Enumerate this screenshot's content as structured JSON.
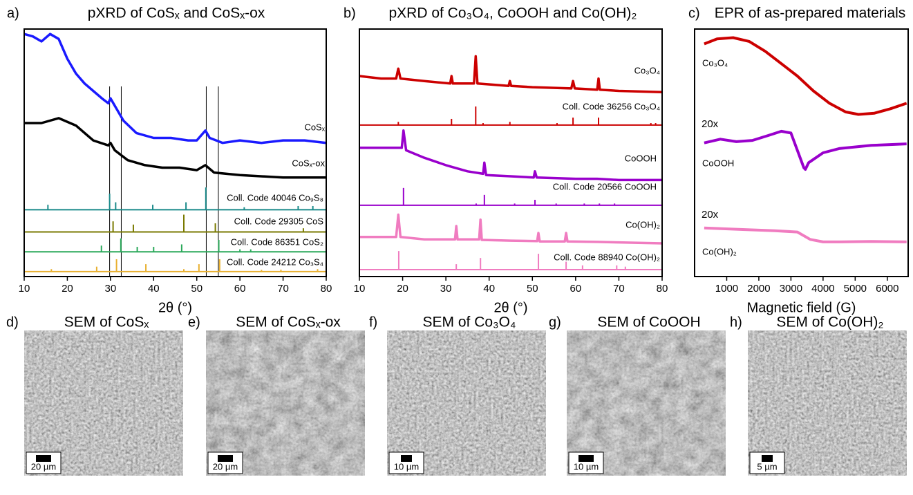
{
  "chart_data": [
    {
      "type": "line",
      "label": "a)",
      "title": "pXRD of CoSₓ and CoSₓ-ox",
      "xlabel": "2θ (°)",
      "xlim": [
        10,
        80
      ],
      "xticks": [
        10,
        20,
        30,
        40,
        50,
        60,
        70,
        80
      ],
      "ylim": [
        0,
        100
      ],
      "vlines": [
        29.8,
        32.5,
        52.2,
        55
      ],
      "series": [
        {
          "name": "CoSₓ",
          "color": "#1a1aff",
          "x": [
            10,
            12,
            14,
            16,
            18,
            20,
            22,
            24,
            26,
            28,
            29.5,
            30,
            31,
            33,
            36,
            40,
            44,
            48,
            50,
            52,
            53,
            56,
            60,
            65,
            70,
            75,
            80
          ],
          "values": [
            98,
            97,
            95,
            98,
            96,
            88,
            82,
            78,
            75,
            72,
            70,
            72,
            69,
            63,
            58,
            56,
            56,
            55,
            55,
            59,
            56,
            54,
            55,
            54,
            55,
            55,
            54
          ]
        },
        {
          "name": "CoSₓ-ox",
          "color": "#000000",
          "x": [
            10,
            14,
            18,
            22,
            26,
            29.5,
            30,
            31,
            34,
            38,
            42,
            46,
            50,
            52,
            54,
            60,
            70,
            80
          ],
          "values": [
            62,
            62,
            64,
            61,
            55,
            53,
            54,
            51,
            47,
            45,
            44,
            44,
            43,
            45,
            42,
            41,
            40,
            40
          ]
        }
      ],
      "references": [
        {
          "name": "Coll. Code 40046 Co₉S₈",
          "color": "#1a8a8a",
          "baseline": 27,
          "x": [
            15.5,
            29.8,
            31.2,
            39.8,
            47.5,
            52.1,
            61,
            73.5,
            76.9
          ],
          "values": [
            29,
            33.5,
            30,
            29,
            30,
            36,
            28,
            28.5,
            28.5
          ]
        },
        {
          "name": "Coll. Code 29305 CoS",
          "color": "#7a7a00",
          "baseline": 18,
          "x": [
            30.6,
            35.3,
            47,
            54.3,
            74.7
          ],
          "values": [
            22.3,
            21,
            25,
            21.5,
            19.5
          ]
        },
        {
          "name": "Coll. Code 86351 CoS₂",
          "color": "#2aa85a",
          "baseline": 10,
          "x": [
            27.9,
            32.4,
            36.2,
            40,
            46.5,
            55.1,
            60,
            62.5
          ],
          "values": [
            12.5,
            15.4,
            12,
            12,
            13,
            14.8,
            11,
            11
          ]
        },
        {
          "name": "Coll. Code 24212 Co₃S₄",
          "color": "#e8b030",
          "baseline": 2,
          "x": [
            16.3,
            26.8,
            31.4,
            38.2,
            47,
            50.5,
            55.3,
            65,
            69.5,
            78
          ],
          "values": [
            3,
            4,
            7,
            5,
            3,
            5,
            7,
            2.7,
            2.8,
            3
          ]
        }
      ]
    },
    {
      "type": "line",
      "label": "b)",
      "title": "pXRD of Co₃O₄, CoOOH and Co(OH)₂",
      "xlabel": "2θ (°)",
      "xlim": [
        10,
        80
      ],
      "xticks": [
        10,
        20,
        30,
        40,
        50,
        60,
        70,
        80
      ],
      "ylim": [
        0,
        100
      ],
      "series": [
        {
          "name": "Co₃O₄",
          "color": "#cc0000",
          "x": [
            10,
            15,
            18.5,
            19,
            19.5,
            25,
            31,
            31.3,
            31.6,
            36.5,
            36.9,
            37.3,
            44.5,
            44.8,
            45.1,
            50,
            59,
            59.4,
            59.8,
            65,
            65.3,
            65.6,
            70,
            80
          ],
          "values": [
            81,
            80,
            80,
            84,
            80,
            79,
            78,
            81,
            78,
            78,
            89,
            78,
            77,
            79,
            77,
            76.5,
            76,
            79,
            76,
            75.5,
            80,
            75.5,
            75,
            74.5
          ]
        },
        {
          "name": "CoOOH",
          "color": "#9900cc",
          "x": [
            10,
            15,
            19.8,
            20.2,
            20.8,
            25,
            30,
            35,
            38.6,
            38.9,
            39.3,
            45,
            50.3,
            50.6,
            51,
            60,
            65,
            70,
            80
          ],
          "values": [
            52,
            52,
            52,
            59,
            51,
            48,
            45,
            42.5,
            41.5,
            46,
            41,
            40.5,
            40,
            42.5,
            40,
            39.5,
            39.5,
            39,
            39
          ]
        },
        {
          "name": "Co(OH)₂",
          "color": "#f07cc0",
          "x": [
            10,
            18.5,
            19,
            19.5,
            25,
            32.1,
            32.4,
            32.7,
            37.7,
            38,
            38.3,
            45,
            51.1,
            51.4,
            51.7,
            57.5,
            57.8,
            58.1,
            65,
            70,
            80
          ],
          "values": [
            16,
            16,
            25,
            16,
            15,
            15,
            20.4,
            15,
            15,
            23,
            14.8,
            14.5,
            14.3,
            17.6,
            14.2,
            14.2,
            17.6,
            14.2,
            14,
            13.8,
            13.4
          ]
        }
      ],
      "references": [
        {
          "name": "Coll. Code 36256 Co₃O₄",
          "color": "#cc0000",
          "baseline": 61.2,
          "x": [
            19,
            31.3,
            36.9,
            38.6,
            44.8,
            55.7,
            59.4,
            65.3,
            77.4,
            78.5
          ],
          "values": [
            62.5,
            63.7,
            68.7,
            62,
            62.5,
            62,
            64.2,
            64.2,
            62,
            62
          ]
        },
        {
          "name": "Coll. Code 20566 CoOOH",
          "color": "#9900cc",
          "baseline": 28.8,
          "x": [
            20.2,
            37,
            38.9,
            45.9,
            50.6,
            55.5,
            62,
            65.5,
            69
          ],
          "values": [
            35.8,
            29.5,
            33,
            29.5,
            31,
            29.5,
            29.5,
            29.5,
            29.5
          ]
        },
        {
          "name": "Coll. Code 88940 Co(OH)₂",
          "color": "#f07cc0",
          "baseline": 2.8,
          "x": [
            19.1,
            32.4,
            38,
            51.4,
            57.8,
            61.6,
            69.5,
            71.5
          ],
          "values": [
            10.3,
            5,
            7.5,
            9.2,
            6,
            4.5,
            4.5,
            4
          ]
        }
      ]
    },
    {
      "type": "line",
      "label": "c)",
      "title": "EPR of as-prepared materials",
      "xlabel": "Magnetic field (G)",
      "xlim": [
        0,
        6650
      ],
      "xticks": [
        1000,
        2000,
        3000,
        4000,
        5000,
        6000
      ],
      "ylim": [
        0,
        100
      ],
      "annotations": [
        "20x",
        "20x"
      ],
      "series": [
        {
          "name": "Co₃O₄",
          "color": "#cc0000",
          "x": [
            300,
            700,
            1200,
            1700,
            2200,
            2700,
            3200,
            3700,
            4200,
            4700,
            5100,
            5600,
            6100,
            6600
          ],
          "values": [
            94,
            96,
            96.5,
            95,
            91,
            86,
            81,
            75,
            70,
            66.5,
            65.5,
            66,
            67.8,
            70
          ]
        },
        {
          "name": "CoOOH",
          "color": "#9900cc",
          "x": [
            300,
            800,
            1300,
            1800,
            2300,
            2700,
            3000,
            3200,
            3400,
            3450,
            3550,
            4000,
            4500,
            5500,
            6600
          ],
          "values": [
            54,
            55.5,
            54.5,
            55,
            57,
            58.7,
            58,
            51,
            44,
            43.3,
            46,
            50,
            51.7,
            53,
            53.6
          ]
        },
        {
          "name": "Co(OH)₂",
          "color": "#f07cc0",
          "x": [
            300,
            1500,
            2500,
            3200,
            3600,
            4000,
            4500,
            5500,
            6600
          ],
          "values": [
            19.6,
            19,
            18.5,
            18,
            15,
            14,
            14,
            14.2,
            14
          ]
        }
      ]
    }
  ],
  "images": [
    {
      "label": "d)",
      "title": "SEM of CoSₓ",
      "scale_bar": "20 µm"
    },
    {
      "label": "e)",
      "title": "SEM of CoSₓ-ox",
      "scale_bar": "20 µm"
    },
    {
      "label": "f)",
      "title": "SEM of Co₃O₄",
      "scale_bar": "10 µm"
    },
    {
      "label": "g)",
      "title": "SEM of CoOOH",
      "scale_bar": "10 µm"
    },
    {
      "label": "h)",
      "title": "SEM of Co(OH)₂",
      "scale_bar": "5 µm"
    }
  ]
}
